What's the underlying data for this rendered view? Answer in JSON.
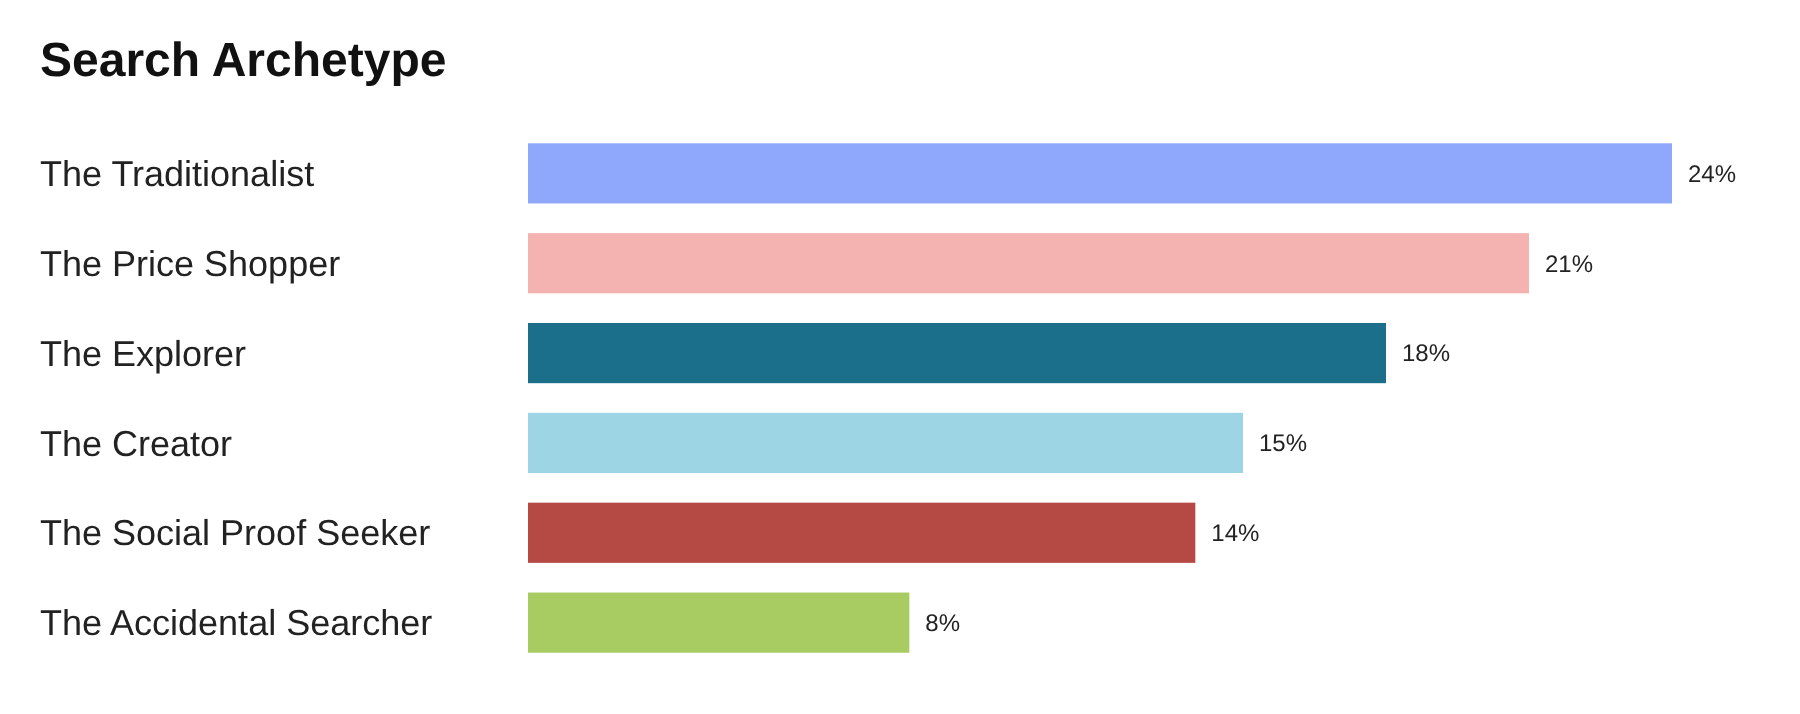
{
  "chart_data": {
    "type": "bar",
    "orientation": "horizontal",
    "title": "Search Archetype",
    "categories": [
      "The Traditionalist",
      "The Price Shopper",
      "The Explorer",
      "The Creator",
      "The Social Proof Seeker",
      "The Accidental Searcher"
    ],
    "values": [
      24,
      21,
      18,
      15,
      14,
      8
    ],
    "value_labels": [
      "24%",
      "21%",
      "18%",
      "15%",
      "14%",
      "8%"
    ],
    "colors": [
      "#8fa8fc",
      "#f4b3b1",
      "#1b6f8a",
      "#9dd5e4",
      "#b54a45",
      "#a8cb62"
    ],
    "stacked": false
  }
}
